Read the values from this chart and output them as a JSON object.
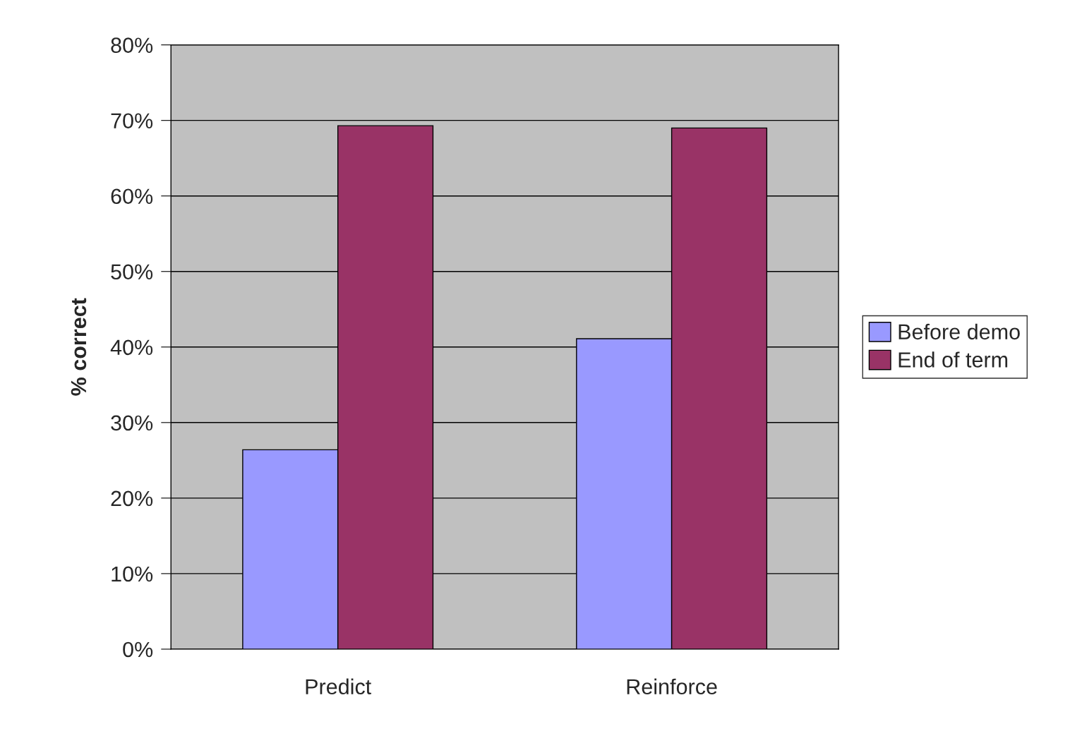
{
  "chart_data": {
    "type": "bar",
    "ylabel": "% correct",
    "categories": [
      "Predict",
      "Reinforce"
    ],
    "series": [
      {
        "name": "Before demo",
        "color": "#9999ff",
        "values": [
          26.4,
          41.1
        ]
      },
      {
        "name": "End of term",
        "color": "#993366",
        "values": [
          69.3,
          69.0
        ]
      }
    ],
    "ylim": [
      0,
      80
    ],
    "yticks": [
      {
        "value": 0,
        "label": "0%"
      },
      {
        "value": 10,
        "label": "10%"
      },
      {
        "value": 20,
        "label": "20%"
      },
      {
        "value": 30,
        "label": "30%"
      },
      {
        "value": 40,
        "label": "40%"
      },
      {
        "value": 50,
        "label": "50%"
      },
      {
        "value": 60,
        "label": "60%"
      },
      {
        "value": 70,
        "label": "70%"
      },
      {
        "value": 80,
        "label": "80%"
      }
    ],
    "grid": "y",
    "legend": "right"
  }
}
